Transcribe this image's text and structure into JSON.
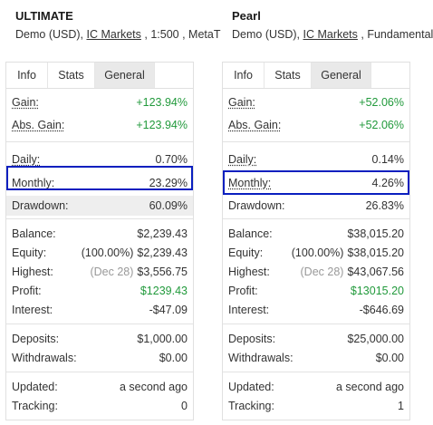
{
  "left": {
    "name": "ULTIMATE",
    "account_type": "Demo (USD), ",
    "broker": "IC Markets",
    "details": " , 1:500 , MetaT",
    "tabs": [
      "Info",
      "Stats",
      "General"
    ],
    "gain": {
      "label": "Gain:",
      "value": "+123.94%"
    },
    "abs_gain": {
      "label": "Abs. Gain:",
      "value": "+123.94%"
    },
    "daily": {
      "label": "Daily:",
      "value": "0.70%"
    },
    "monthly": {
      "label": "Monthly:",
      "value": "23.29%"
    },
    "drawdown": {
      "label": "Drawdown:",
      "value": "60.09%"
    },
    "balance": {
      "label": "Balance:",
      "value": "$2,239.43"
    },
    "equity": {
      "label": "Equity:",
      "note": "(100.00%)",
      "value": "$2,239.43"
    },
    "highest": {
      "label": "Highest:",
      "note": "(Dec 28)",
      "value": "$3,556.75"
    },
    "profit": {
      "label": "Profit:",
      "value": "$1239.43"
    },
    "interest": {
      "label": "Interest:",
      "value": "-$47.09"
    },
    "deposits": {
      "label": "Deposits:",
      "value": "$1,000.00"
    },
    "withdrawals": {
      "label": "Withdrawals:",
      "value": "$0.00"
    },
    "updated": {
      "label": "Updated:",
      "value": "a second ago"
    },
    "tracking": {
      "label": "Tracking:",
      "value": "0"
    }
  },
  "right": {
    "name": "Pearl",
    "account_type": "Demo (USD), ",
    "broker": "IC Markets",
    "details": " , Fundamental",
    "tabs": [
      "Info",
      "Stats",
      "General"
    ],
    "gain": {
      "label": "Gain:",
      "value": "+52.06%"
    },
    "abs_gain": {
      "label": "Abs. Gain:",
      "value": "+52.06%"
    },
    "daily": {
      "label": "Daily:",
      "value": "0.14%"
    },
    "monthly": {
      "label": "Monthly:",
      "value": "4.26%"
    },
    "drawdown": {
      "label": "Drawdown:",
      "value": "26.83%"
    },
    "balance": {
      "label": "Balance:",
      "value": "$38,015.20"
    },
    "equity": {
      "label": "Equity:",
      "note": "(100.00%)",
      "value": "$38,015.20"
    },
    "highest": {
      "label": "Highest:",
      "note": "(Dec 28)",
      "value": "$43,067.56"
    },
    "profit": {
      "label": "Profit:",
      "value": "$13015.20"
    },
    "interest": {
      "label": "Interest:",
      "value": "-$646.69"
    },
    "deposits": {
      "label": "Deposits:",
      "value": "$25,000.00"
    },
    "withdrawals": {
      "label": "Withdrawals:",
      "value": "$0.00"
    },
    "updated": {
      "label": "Updated:",
      "value": "a second ago"
    },
    "tracking": {
      "label": "Tracking:",
      "value": "1"
    }
  },
  "colors": {
    "positive": "#229a3c",
    "highlight_border": "#0a1fbf"
  }
}
